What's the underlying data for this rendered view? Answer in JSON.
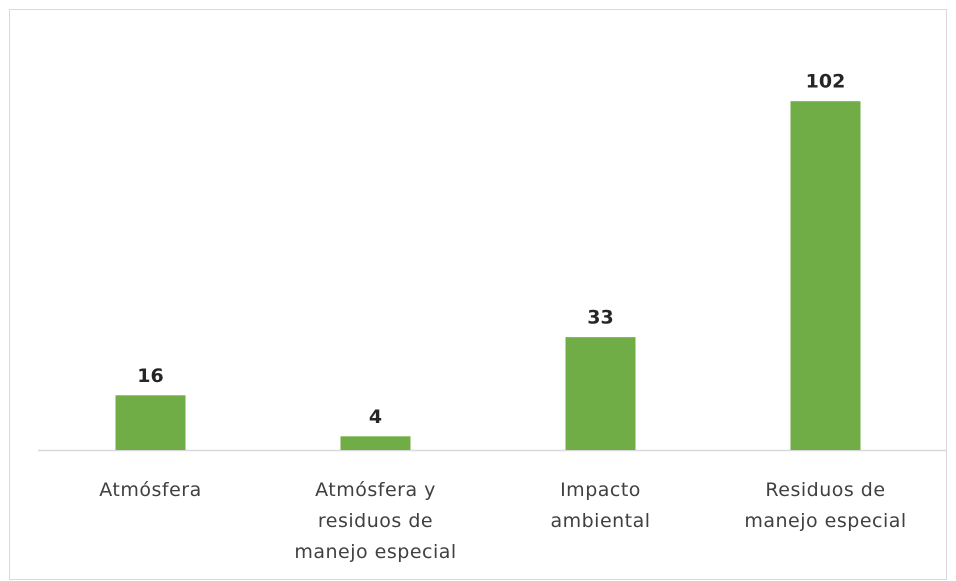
{
  "chart_data": {
    "type": "bar",
    "categories": [
      "Atmósfera",
      "Atmósfera y residuos de manejo especial",
      "Impacto ambiental",
      "Residuos de manejo especial"
    ],
    "values": [
      16,
      4,
      33,
      102
    ],
    "color": "#70ad47",
    "ylim": [
      0,
      112
    ]
  }
}
